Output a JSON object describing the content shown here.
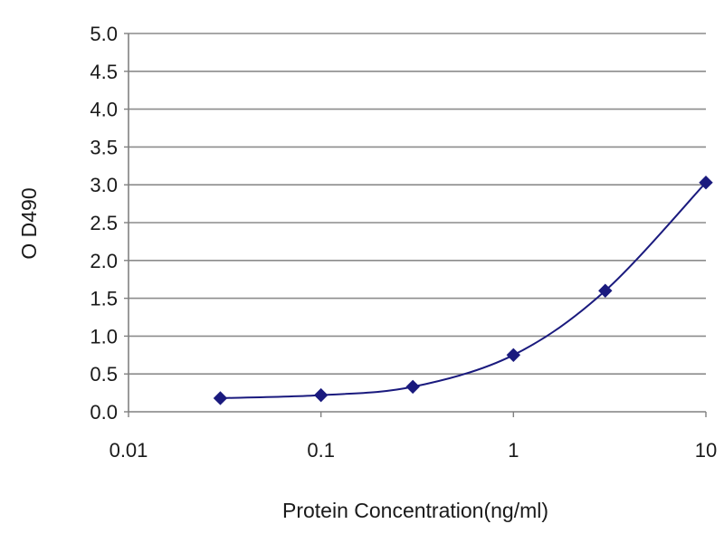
{
  "chart_data": {
    "type": "line",
    "title": "",
    "xlabel": "Protein Concentration(ng/ml)",
    "ylabel": "O D490",
    "x_scale": "log",
    "xlim": [
      0.01,
      10
    ],
    "ylim": [
      0,
      5
    ],
    "grid": "horizontal",
    "x_ticks": [
      0.01,
      0.1,
      1,
      10
    ],
    "x_tick_labels": [
      "0.01",
      "0.1",
      "1",
      "10"
    ],
    "y_ticks": [
      0,
      0.5,
      1,
      1.5,
      2,
      2.5,
      3,
      3.5,
      4,
      4.5,
      5
    ],
    "y_tick_labels": [
      "0.0",
      "0.5",
      "1.0",
      "1.5",
      "2.0",
      "2.5",
      "3.0",
      "3.5",
      "4.0",
      "4.5",
      "5.0"
    ],
    "colors": {
      "series": "#1a1a7e",
      "grid": "#8c8c8c",
      "axis": "#808080"
    },
    "series": [
      {
        "x": [
          0.03,
          0.1,
          0.3,
          1,
          3,
          10
        ],
        "y": [
          0.18,
          0.22,
          0.33,
          0.75,
          1.6,
          3.03
        ]
      }
    ]
  }
}
